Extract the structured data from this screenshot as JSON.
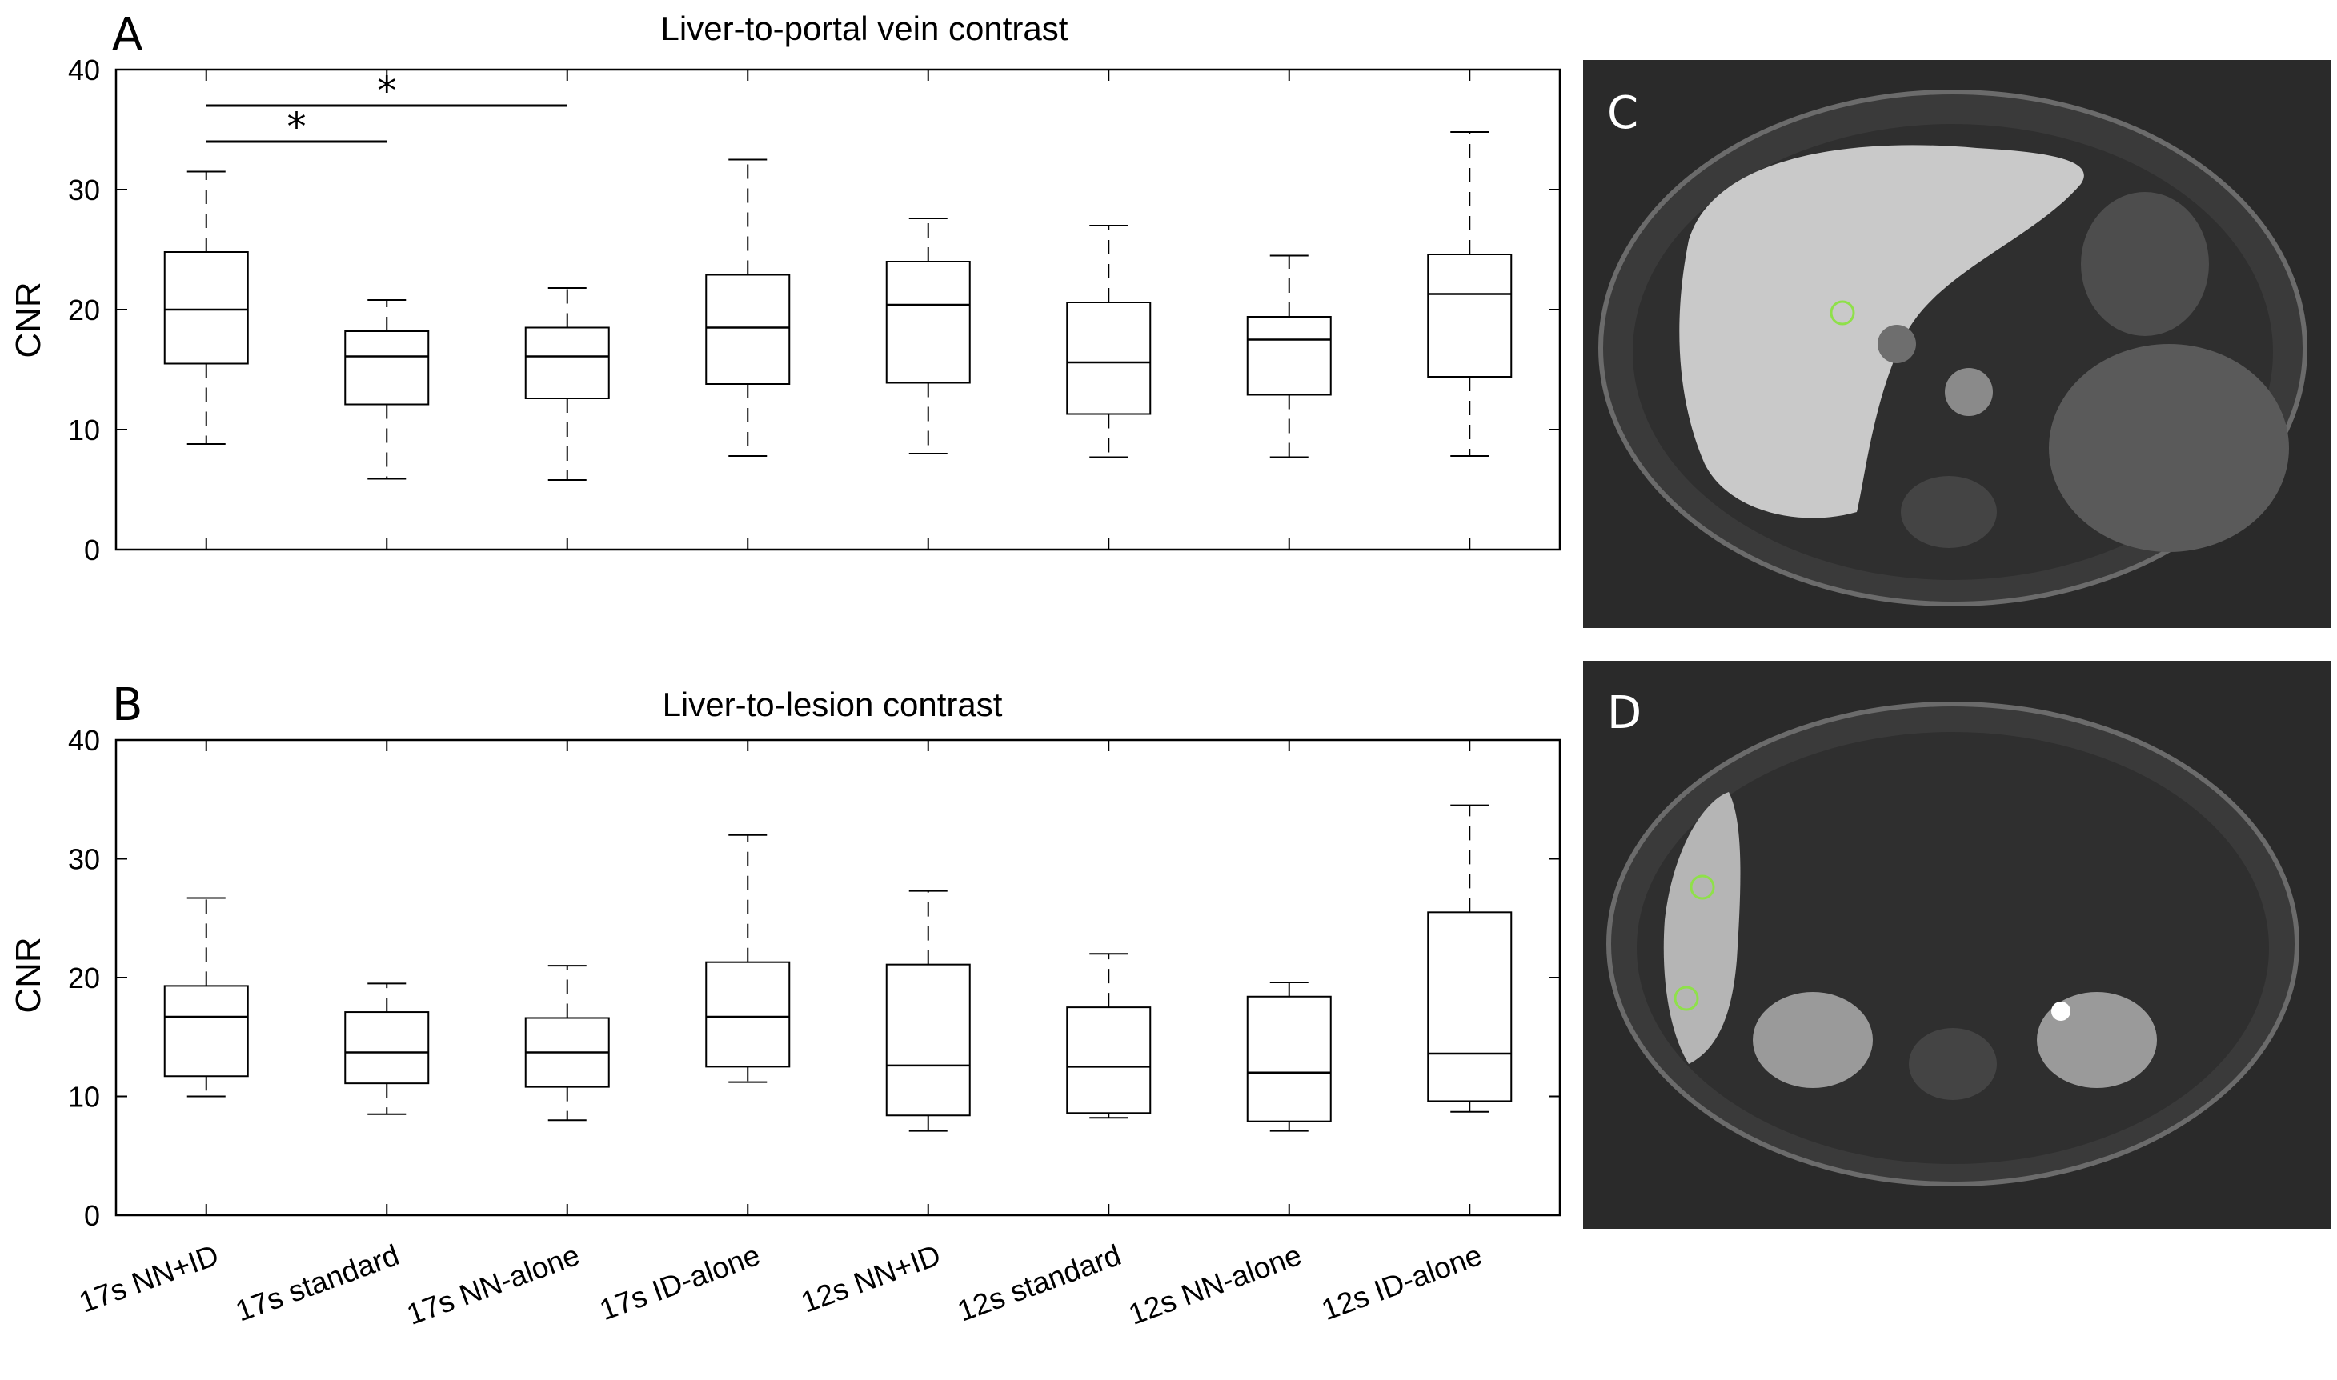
{
  "chart_data": [
    {
      "panel": "A",
      "type": "boxplot",
      "title": "Liver-to-portal vein contrast",
      "ylabel": "CNR",
      "xlabel": "",
      "ylim": [
        0,
        40
      ],
      "yticks": [
        0,
        10,
        20,
        30,
        40
      ],
      "categories": [
        "17s NN+ID",
        "17s standard",
        "17s NN-alone",
        "17s ID-alone",
        "12s NN+ID",
        "12s standard",
        "12s NN-alone",
        "12s ID-alone"
      ],
      "boxes": [
        {
          "min": 8.8,
          "q1": 15.5,
          "median": 20.0,
          "q3": 24.8,
          "max": 31.5
        },
        {
          "min": 5.9,
          "q1": 12.1,
          "median": 16.1,
          "q3": 18.2,
          "max": 20.8
        },
        {
          "min": 5.8,
          "q1": 12.6,
          "median": 16.1,
          "q3": 18.5,
          "max": 21.8
        },
        {
          "min": 7.8,
          "q1": 13.8,
          "median": 18.5,
          "q3": 22.9,
          "max": 32.5
        },
        {
          "min": 8.0,
          "q1": 13.9,
          "median": 20.4,
          "q3": 24.0,
          "max": 27.6
        },
        {
          "min": 7.7,
          "q1": 11.3,
          "median": 15.6,
          "q3": 20.6,
          "max": 27.0
        },
        {
          "min": 7.7,
          "q1": 12.9,
          "median": 17.5,
          "q3": 19.4,
          "max": 24.5
        },
        {
          "min": 7.8,
          "q1": 14.4,
          "median": 21.3,
          "q3": 24.6,
          "max": 34.8
        }
      ],
      "significance": [
        {
          "from": 0,
          "to": 1,
          "y": 34.0,
          "label": "*"
        },
        {
          "from": 0,
          "to": 2,
          "y": 37.0,
          "label": "*"
        }
      ]
    },
    {
      "panel": "B",
      "type": "boxplot",
      "title": "Liver-to-lesion contrast",
      "ylabel": "CNR",
      "xlabel": "",
      "ylim": [
        0,
        40
      ],
      "yticks": [
        0,
        10,
        20,
        30,
        40
      ],
      "categories": [
        "17s NN+ID",
        "17s standard",
        "17s NN-alone",
        "17s ID-alone",
        "12s NN+ID",
        "12s standard",
        "12s NN-alone",
        "12s ID-alone"
      ],
      "boxes": [
        {
          "min": 10.0,
          "q1": 11.7,
          "median": 16.7,
          "q3": 19.3,
          "max": 26.7
        },
        {
          "min": 8.5,
          "q1": 11.1,
          "median": 13.7,
          "q3": 17.1,
          "max": 19.5
        },
        {
          "min": 8.0,
          "q1": 10.8,
          "median": 13.7,
          "q3": 16.6,
          "max": 21.0
        },
        {
          "min": 11.2,
          "q1": 12.5,
          "median": 16.7,
          "q3": 21.3,
          "max": 32.0
        },
        {
          "min": 7.1,
          "q1": 8.4,
          "median": 12.6,
          "q3": 21.1,
          "max": 27.3
        },
        {
          "min": 8.2,
          "q1": 8.6,
          "median": 12.5,
          "q3": 17.5,
          "max": 22.0
        },
        {
          "min": 7.1,
          "q1": 7.9,
          "median": 12.0,
          "q3": 18.4,
          "max": 19.6
        },
        {
          "min": 8.7,
          "q1": 9.6,
          "median": 13.6,
          "q3": 25.5,
          "max": 34.5
        }
      ],
      "significance": []
    }
  ],
  "images": [
    {
      "panel": "C",
      "label": "C",
      "description_name": "axial-mri-portal-vein-roi"
    },
    {
      "panel": "D",
      "label": "D",
      "description_name": "axial-mri-lesion-roi"
    }
  ],
  "colors": {
    "axis": "#000000",
    "roi_circle": "#8fe04a",
    "mri_background": "#2a2a2a"
  }
}
